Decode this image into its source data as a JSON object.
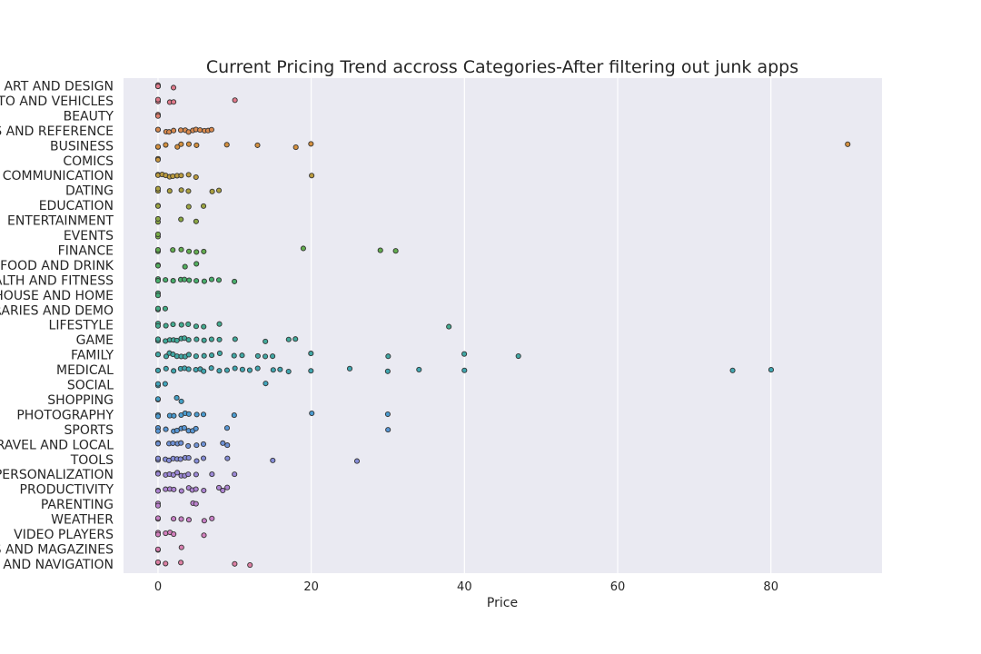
{
  "chart_data": {
    "type": "scatter",
    "subtype": "strip",
    "title": "Current Pricing Trend accross Categories-After filtering out junk apps",
    "xlabel": "Price",
    "ylabel": "",
    "xlim": [
      -4.5,
      94.5
    ],
    "xticks": [
      0,
      20,
      40,
      60,
      80
    ],
    "grid": true,
    "categories": [
      {
        "label": "ART AND DESIGN",
        "color": "#e07a8c",
        "values": [
          0,
          0,
          0,
          2
        ]
      },
      {
        "label": "AUTO AND VEHICLES",
        "color": "#e0798a",
        "values": [
          0,
          0,
          1.5,
          2,
          10
        ]
      },
      {
        "label": "BEAUTY",
        "color": "#de7f6f",
        "values": [
          0,
          0
        ]
      },
      {
        "label": "BOOKS AND REFERENCE",
        "color": "#d98a4f",
        "values": [
          0,
          0,
          1,
          1.5,
          2,
          3,
          3.5,
          4,
          4.5,
          5,
          5.5,
          6,
          6.5,
          7
        ]
      },
      {
        "label": "BUSINESS",
        "color": "#d4903f",
        "values": [
          0,
          0,
          1,
          2.5,
          3,
          4,
          5,
          9,
          13,
          18,
          20,
          90
        ]
      },
      {
        "label": "COMICS",
        "color": "#c8963f",
        "values": [
          0,
          0
        ]
      },
      {
        "label": "COMMUNICATION",
        "color": "#bb9b3f",
        "values": [
          0,
          0,
          0.5,
          1,
          1.5,
          2,
          2.5,
          3,
          4,
          5,
          20
        ]
      },
      {
        "label": "DATING",
        "color": "#aba040",
        "values": [
          0,
          0,
          1.5,
          3,
          4,
          7,
          8
        ]
      },
      {
        "label": "EDUCATION",
        "color": "#9ba442",
        "values": [
          0,
          0,
          4,
          6
        ]
      },
      {
        "label": "ENTERTAINMENT",
        "color": "#8ba744",
        "values": [
          0,
          0,
          3,
          5
        ]
      },
      {
        "label": "EVENTS",
        "color": "#78ab47",
        "values": [
          0,
          0
        ]
      },
      {
        "label": "FINANCE",
        "color": "#63ad50",
        "values": [
          0,
          0,
          2,
          3,
          4,
          5,
          6,
          19,
          29,
          31
        ]
      },
      {
        "label": "FOOD AND DRINK",
        "color": "#52ae5e",
        "values": [
          0,
          0,
          3.5,
          5
        ]
      },
      {
        "label": "HEALTH AND FITNESS",
        "color": "#48ae6c",
        "values": [
          0,
          0,
          1,
          2,
          3,
          3.5,
          4,
          5,
          6,
          7,
          8,
          10
        ]
      },
      {
        "label": "HOUSE AND HOME",
        "color": "#45ad79",
        "values": [
          0,
          0
        ]
      },
      {
        "label": "LIBRARIES AND DEMO",
        "color": "#44ac85",
        "values": [
          0,
          0,
          1
        ]
      },
      {
        "label": "LIFESTYLE",
        "color": "#43ab90",
        "values": [
          0,
          0,
          1,
          2,
          3,
          4,
          5,
          6,
          8,
          38
        ]
      },
      {
        "label": "GAME",
        "color": "#42aa9b",
        "values": [
          0,
          0,
          1,
          1.5,
          2,
          2.5,
          3,
          3.5,
          4,
          5,
          6,
          7,
          8,
          10,
          14,
          17,
          18
        ]
      },
      {
        "label": "FAMILY",
        "color": "#41a8a5",
        "values": [
          0,
          0,
          1,
          1.5,
          2,
          2.5,
          3,
          3.5,
          4,
          5,
          6,
          7,
          8,
          10,
          11,
          13,
          14,
          15,
          20,
          30,
          40,
          47
        ]
      },
      {
        "label": "MEDICAL",
        "color": "#40a6b0",
        "values": [
          0,
          0,
          1,
          2,
          3,
          3.5,
          4,
          5,
          5.5,
          6,
          7,
          8,
          9,
          10,
          11,
          12,
          13,
          15,
          16,
          17,
          20,
          25,
          30,
          34,
          40,
          75,
          80
        ]
      },
      {
        "label": "SOCIAL",
        "color": "#41a4bc",
        "values": [
          0,
          0,
          1,
          14
        ]
      },
      {
        "label": "SHOPPING",
        "color": "#44a0c6",
        "values": [
          0,
          0,
          2.5,
          3
        ]
      },
      {
        "label": "PHOTOGRAPHY",
        "color": "#4b9bd0",
        "values": [
          0,
          0,
          1.5,
          2,
          3,
          3.5,
          4,
          5,
          6,
          10,
          20,
          30
        ]
      },
      {
        "label": "SPORTS",
        "color": "#5896d4",
        "values": [
          0,
          0,
          1,
          2,
          2.5,
          3,
          3.5,
          4,
          4.5,
          5,
          9,
          30
        ]
      },
      {
        "label": "TRAVEL AND LOCAL",
        "color": "#6f92d6",
        "values": [
          0,
          0,
          1.5,
          2,
          2.5,
          3,
          4,
          5,
          6,
          8.5,
          9
        ]
      },
      {
        "label": "TOOLS",
        "color": "#858dd8",
        "values": [
          0,
          0,
          1,
          1.5,
          2,
          2.5,
          3,
          3.5,
          4,
          5,
          6,
          9,
          15,
          26
        ]
      },
      {
        "label": "PERSONALIZATION",
        "color": "#9b88d6",
        "values": [
          0,
          0,
          1,
          1.5,
          2,
          2.5,
          3,
          3.5,
          4,
          5,
          7,
          10
        ]
      },
      {
        "label": "PRODUCTIVITY",
        "color": "#ad84d2",
        "values": [
          0,
          0,
          1,
          1.5,
          2,
          3,
          4,
          4.5,
          5,
          6,
          8,
          8.5,
          9
        ]
      },
      {
        "label": "PARENTING",
        "color": "#bb82cd",
        "values": [
          0,
          0,
          4.5,
          5
        ]
      },
      {
        "label": "WEATHER",
        "color": "#c880c6",
        "values": [
          0,
          0,
          2,
          3,
          4,
          6,
          7
        ]
      },
      {
        "label": "VIDEO PLAYERS",
        "color": "#d27fbd",
        "values": [
          0,
          0,
          1,
          1.5,
          2,
          6
        ]
      },
      {
        "label": "NEWS AND MAGAZINES",
        "color": "#d87fb1",
        "values": [
          0,
          0,
          3
        ]
      },
      {
        "label": "MAPS AND NAVIGATION",
        "color": "#dc7fa3",
        "values": [
          0,
          0,
          1,
          3,
          10,
          12
        ]
      }
    ]
  }
}
